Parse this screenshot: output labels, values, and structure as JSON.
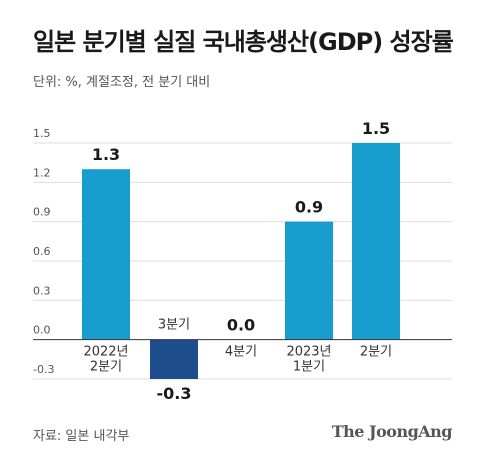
{
  "chart_data": {
    "type": "bar",
    "title": "일본 분기별 실질 국내총생산(GDP) 성장률",
    "subtitle": "단위: %, 계절조정, 전 분기 대비",
    "categories": [
      [
        "2022년",
        "2분기"
      ],
      [
        "3분기"
      ],
      [
        "4분기"
      ],
      [
        "2023년",
        "1분기"
      ],
      [
        "2분기"
      ]
    ],
    "values": [
      1.3,
      -0.3,
      0.0,
      0.9,
      1.5
    ],
    "value_labels": [
      "1.3",
      "-0.3",
      "0.0",
      "0.9",
      "1.5"
    ],
    "yticks": [
      -0.3,
      0.0,
      0.3,
      0.6,
      0.9,
      1.2,
      1.5
    ],
    "ytick_labels": [
      "-0.3",
      "0.0",
      "0.3",
      "0.6",
      "0.9",
      "1.2",
      "1.5"
    ],
    "ylim": [
      -0.3,
      1.5
    ],
    "grid": true,
    "legend": "none",
    "colors": {
      "positive": "#189dcf",
      "negative": "#1d4d8c",
      "grid": "#dddddd",
      "zero_line": "#333333"
    }
  },
  "source": "자료: 일본 내각부",
  "brand": "The JoongAng"
}
